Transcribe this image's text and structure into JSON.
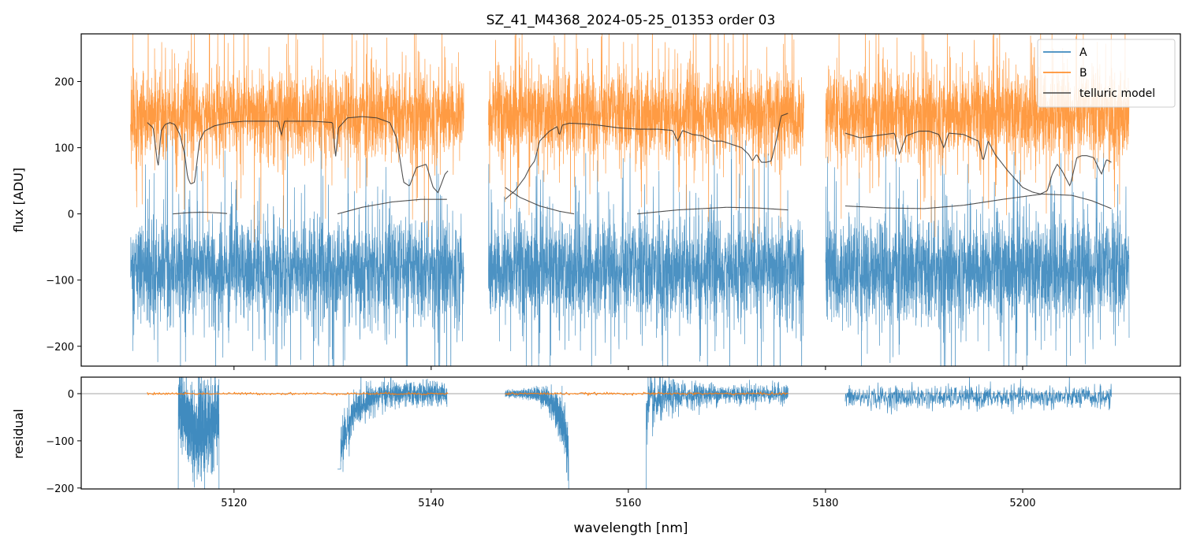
{
  "chart_data": [
    {
      "type": "line",
      "panel": "top",
      "title": "SZ_41_M4368_2024-05-25_01353  order 03",
      "xlabel": "",
      "ylabel": "flux [ADU]",
      "xlim": [
        5104.5,
        5216
      ],
      "ylim": [
        -230,
        272
      ],
      "yticks": [
        -200,
        -100,
        0,
        100,
        200
      ],
      "ytick_labels": [
        "−200",
        "−100",
        "0",
        "100",
        "200"
      ],
      "xticks": [
        5120,
        5140,
        5160,
        5180,
        5200
      ],
      "legend": {
        "position": "top-right",
        "entries": [
          "A",
          "B",
          "telluric model"
        ]
      },
      "segments": [
        [
          5109.5,
          5143.3
        ],
        [
          5145.8,
          5177.8
        ],
        [
          5180.0,
          5210.8
        ]
      ],
      "series": [
        {
          "name": "A",
          "color": "#1f77b4",
          "center": -85,
          "noise": 65
        },
        {
          "name": "B",
          "color": "#ff7f0e",
          "center": 150,
          "noise": 55
        },
        {
          "name": "telluric model",
          "color": "#444444",
          "upper_curves": [
            {
              "x": [
                5111.2,
                5111.8,
                5112.3,
                5112.6,
                5113.0,
                5113.5,
                5114.0,
                5114.5,
                5115.0,
                5115.3,
                5115.6,
                5116.0,
                5116.5,
                5117.0,
                5118.0,
                5119.5,
                5121.0,
                5123.0,
                5124.5,
                5124.8,
                5125.1,
                5126.5,
                5128.0,
                5130.0,
                5130.3,
                5130.6,
                5131.5,
                5133.0,
                5134.5,
                5135.8,
                5136.5,
                5137.2,
                5137.8,
                5138.5,
                5139.5,
                5140.2,
                5140.7,
                5141.4,
                5141.7
              ],
              "y": [
                138,
                130,
                70,
                125,
                135,
                138,
                135,
                120,
                90,
                55,
                45,
                48,
                110,
                125,
                133,
                138,
                140,
                140,
                140,
                118,
                140,
                140,
                140,
                138,
                85,
                130,
                145,
                147,
                145,
                138,
                115,
                48,
                42,
                70,
                75,
                40,
                32,
                60,
                65
              ]
            },
            {
              "x": [
                5147.5,
                5148.5,
                5149.5,
                5150.0,
                5150.5,
                5151.0,
                5152.0,
                5152.8,
                5153.0,
                5153.3,
                5154.0,
                5155.5,
                5157.0,
                5159.0,
                5161.0,
                5163.0,
                5164.5,
                5165.0,
                5165.5,
                5166.5,
                5167.5,
                5168.5,
                5169.5,
                5170.5,
                5171.5,
                5172.2,
                5172.6,
                5173.0,
                5173.5,
                5174.0,
                5174.5,
                5175.0,
                5175.5,
                5176.2
              ],
              "y": [
                22,
                35,
                55,
                70,
                80,
                110,
                125,
                132,
                118,
                134,
                137,
                136,
                134,
                130,
                128,
                128,
                126,
                110,
                126,
                120,
                118,
                110,
                110,
                105,
                100,
                90,
                80,
                90,
                78,
                78,
                80,
                110,
                148,
                152
              ]
            },
            {
              "x": [
                5182.0,
                5183.5,
                5185.0,
                5187.0,
                5187.5,
                5188.2,
                5189.5,
                5190.5,
                5191.5,
                5192.0,
                5192.5,
                5194.0,
                5195.5,
                5196.0,
                5196.5,
                5197.2,
                5198.5,
                5200.0,
                5201.0,
                5201.8,
                5202.5,
                5203.0,
                5203.5,
                5204.0,
                5204.8,
                5205.5,
                5206.0,
                5206.5,
                5207.2,
                5208.0,
                5208.5,
                5209.0
              ],
              "y": [
                122,
                115,
                118,
                122,
                90,
                118,
                125,
                125,
                120,
                100,
                122,
                120,
                110,
                80,
                110,
                90,
                65,
                40,
                33,
                30,
                35,
                60,
                75,
                65,
                42,
                85,
                88,
                88,
                85,
                60,
                82,
                78
              ]
            }
          ],
          "lower_curves": [
            {
              "x": [
                5113.8,
                5115.5,
                5117.0,
                5118.5,
                5119.3
              ],
              "y": [
                0,
                2,
                2.5,
                1.5,
                0.5
              ]
            },
            {
              "x": [
                5130.5,
                5133.0,
                5136.0,
                5139.0,
                5141.6
              ],
              "y": [
                0,
                10,
                18,
                22,
                22
              ]
            },
            {
              "x": [
                5147.5,
                5149.0,
                5151.0,
                5153.0,
                5154.5
              ],
              "y": [
                40,
                25,
                12,
                4,
                0
              ]
            },
            {
              "x": [
                5160.9,
                5165.0,
                5170.0,
                5173.0,
                5176.2
              ],
              "y": [
                0,
                6,
                10,
                9,
                6
              ]
            },
            {
              "x": [
                5182.0,
                5186.0,
                5190.0,
                5194.0,
                5198.0,
                5202.0,
                5205.0,
                5207.0,
                5209.0
              ],
              "y": [
                12,
                9,
                8,
                13,
                22,
                30,
                28,
                20,
                8
              ]
            }
          ]
        }
      ]
    },
    {
      "type": "line",
      "panel": "bottom",
      "title": "",
      "xlabel": "wavelength [nm]",
      "ylabel": "residual",
      "xlim": [
        5104.5,
        5216
      ],
      "ylim": [
        -202,
        35
      ],
      "yticks": [
        -200,
        -100,
        0
      ],
      "ytick_labels": [
        "−200",
        "−100",
        "0"
      ],
      "xticks": [
        5120,
        5140,
        5160,
        5180,
        5200
      ],
      "xtick_labels": [
        "5120",
        "5140",
        "5160",
        "5180",
        "5200"
      ],
      "zero_line": true,
      "segments": [
        [
          5111.2,
          5141.7
        ],
        [
          5147.5,
          5176.2
        ],
        [
          5182.0,
          5209.0
        ]
      ],
      "series": [
        {
          "name": "A",
          "color": "#1f77b4",
          "features": [
            {
              "x": [
                5113.8,
                5119.3
              ],
              "depth": -202
            },
            {
              "x": [
                5130.5,
                5141.6
              ],
              "depth": -160
            },
            {
              "x": [
                5147.5,
                5154.5
              ],
              "depth": -202
            },
            {
              "x": [
                5160.9,
                5176.2
              ],
              "depth": -202
            },
            {
              "x": [
                5182.0,
                5209.0
              ],
              "depth": -40
            }
          ]
        },
        {
          "name": "B",
          "color": "#ff7f0e",
          "level": 0
        }
      ]
    }
  ]
}
